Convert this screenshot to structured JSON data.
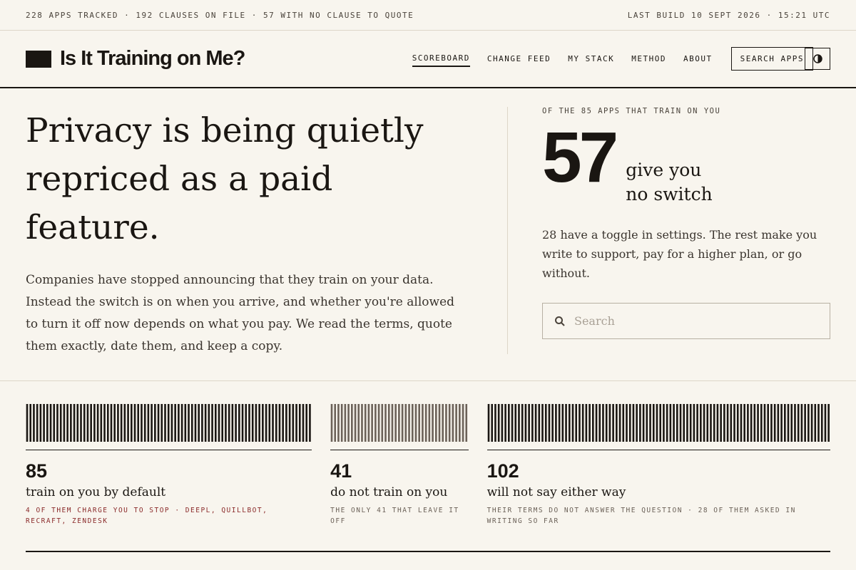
{
  "top_bar": {
    "left": "228 APPS TRACKED · 192 CLAUSES ON FILE · 57 WITH NO CLAUSE TO QUOTE",
    "right": "LAST BUILD 10 SEPT 2026 · 15:21 UTC"
  },
  "header": {
    "title": "Is It Training on Me?",
    "nav": [
      "SCOREBOARD",
      "CHANGE FEED",
      "MY STACK",
      "METHOD",
      "ABOUT"
    ],
    "search_button": "SEARCH APPS"
  },
  "hero": {
    "headline": "Privacy is being quietly repriced as a paid feature.",
    "body": "Companies have stopped announcing that they train on your data. Instead the switch is on when you arrive, and whether you're allowed to turn it off now depends on what you pay. We read the terms, quote them exactly, date them, and keep a copy."
  },
  "summary": {
    "kicker": "OF THE 85 APPS THAT TRAIN ON YOU",
    "number": "57",
    "caption": [
      "give you",
      "no switch"
    ],
    "body": "28 have a toggle in settings. The rest make you write to support, pay for a higher plan, or go without.",
    "search_placeholder": "Search"
  },
  "stats": [
    {
      "value": 85,
      "label": "train on you by default",
      "note": "4 OF THEM CHARGE YOU TO STOP · DEEPL, QUILLBOT, RECRAFT, ZENDESK",
      "color": "#1a1612"
    },
    {
      "value": 41,
      "label": "do not train on you",
      "note": "THE ONLY 41 THAT LEAVE IT OFF",
      "color": "#6b6158"
    },
    {
      "value": 102,
      "label": "will not say either way",
      "note": "THEIR TERMS DO NOT ANSWER THE QUESTION · 28 OF THEM ASKED IN WRITING SO FAR",
      "color": "#1a1612"
    }
  ]
}
